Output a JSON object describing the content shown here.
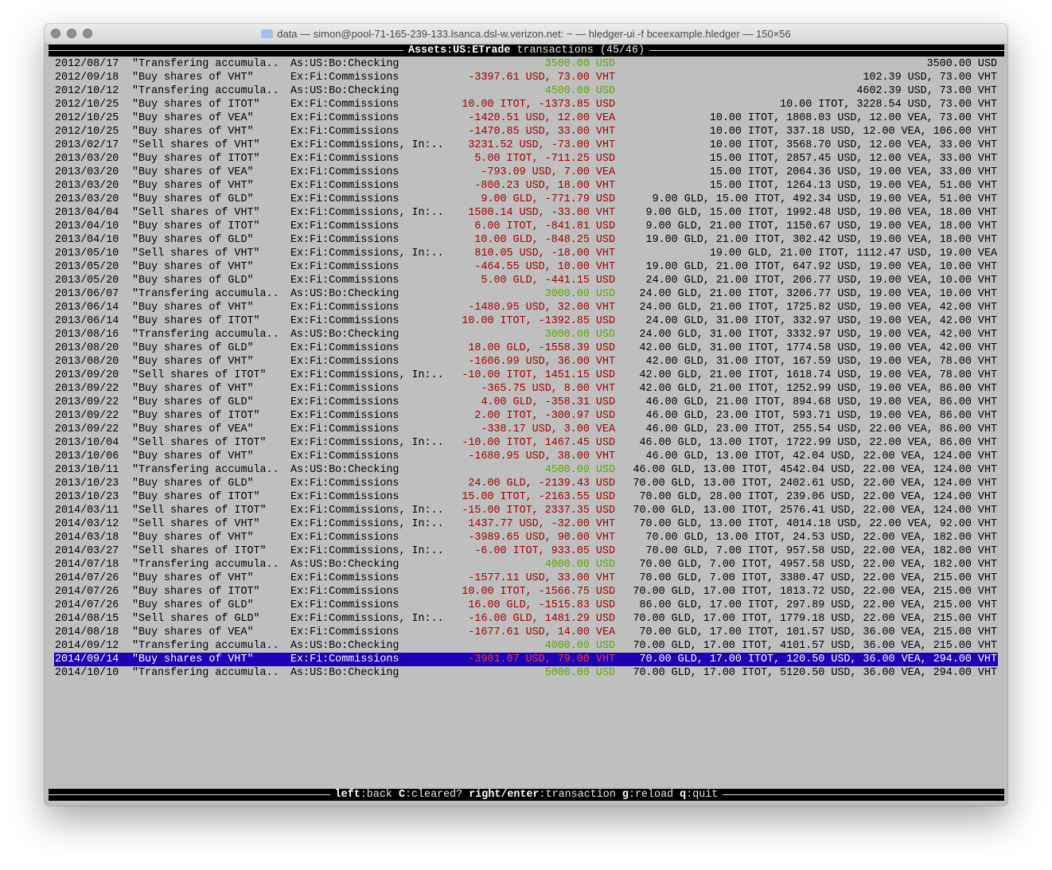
{
  "window": {
    "title": "data — simon@pool-71-165-239-133.lsanca.dsl-w.verizon.net: ~ — hledger-ui -f bceexample.hledger — 150×56"
  },
  "header": {
    "account": "Assets:US:ETrade",
    "label": "transactions",
    "position": "(45/46)"
  },
  "colors": {
    "increase": "#5aa800",
    "decrease": "#a00000",
    "selection": "#1c00b8"
  },
  "selected_index": 44,
  "rows": [
    {
      "date": "2012/08/17",
      "desc": "\"Transfering accumula..",
      "acct": "As:US:Bo:Checking",
      "change": "3500.00 USD",
      "dir": "green",
      "balance": "3500.00 USD"
    },
    {
      "date": "2012/09/18",
      "desc": "\"Buy shares of VHT\"",
      "acct": "Ex:Fi:Commissions",
      "change": "-3397.61 USD, 73.00 VHT",
      "dir": "red",
      "balance": "102.39 USD, 73.00 VHT"
    },
    {
      "date": "2012/10/12",
      "desc": "\"Transfering accumula..",
      "acct": "As:US:Bo:Checking",
      "change": "4500.00 USD",
      "dir": "green",
      "balance": "4602.39 USD, 73.00 VHT"
    },
    {
      "date": "2012/10/25",
      "desc": "\"Buy shares of ITOT\"",
      "acct": "Ex:Fi:Commissions",
      "change": "10.00 ITOT, -1373.85 USD",
      "dir": "red",
      "balance": "10.00 ITOT, 3228.54 USD, 73.00 VHT"
    },
    {
      "date": "2012/10/25",
      "desc": "\"Buy shares of VEA\"",
      "acct": "Ex:Fi:Commissions",
      "change": "-1420.51 USD, 12.00 VEA",
      "dir": "red",
      "balance": "10.00 ITOT, 1808.03 USD, 12.00 VEA, 73.00 VHT"
    },
    {
      "date": "2012/10/25",
      "desc": "\"Buy shares of VHT\"",
      "acct": "Ex:Fi:Commissions",
      "change": "-1470.85 USD, 33.00 VHT",
      "dir": "red",
      "balance": "10.00 ITOT, 337.18 USD, 12.00 VEA, 106.00 VHT"
    },
    {
      "date": "2013/02/17",
      "desc": "\"Sell shares of VHT\"",
      "acct": "Ex:Fi:Commissions, In:..",
      "change": "3231.52 USD, -73.00 VHT",
      "dir": "red",
      "balance": "10.00 ITOT, 3568.70 USD, 12.00 VEA, 33.00 VHT"
    },
    {
      "date": "2013/03/20",
      "desc": "\"Buy shares of ITOT\"",
      "acct": "Ex:Fi:Commissions",
      "change": "5.00 ITOT, -711.25 USD",
      "dir": "red",
      "balance": "15.00 ITOT, 2857.45 USD, 12.00 VEA, 33.00 VHT"
    },
    {
      "date": "2013/03/20",
      "desc": "\"Buy shares of VEA\"",
      "acct": "Ex:Fi:Commissions",
      "change": "-793.09 USD, 7.00 VEA",
      "dir": "red",
      "balance": "15.00 ITOT, 2064.36 USD, 19.00 VEA, 33.00 VHT"
    },
    {
      "date": "2013/03/20",
      "desc": "\"Buy shares of VHT\"",
      "acct": "Ex:Fi:Commissions",
      "change": "-800.23 USD, 18.00 VHT",
      "dir": "red",
      "balance": "15.00 ITOT, 1264.13 USD, 19.00 VEA, 51.00 VHT"
    },
    {
      "date": "2013/03/20",
      "desc": "\"Buy shares of GLD\"",
      "acct": "Ex:Fi:Commissions",
      "change": "9.00 GLD, -771.79 USD",
      "dir": "red",
      "balance": "9.00 GLD, 15.00 ITOT, 492.34 USD, 19.00 VEA, 51.00 VHT"
    },
    {
      "date": "2013/04/04",
      "desc": "\"Sell shares of VHT\"",
      "acct": "Ex:Fi:Commissions, In:..",
      "change": "1500.14 USD, -33.00 VHT",
      "dir": "red",
      "balance": "9.00 GLD, 15.00 ITOT, 1992.48 USD, 19.00 VEA, 18.00 VHT"
    },
    {
      "date": "2013/04/10",
      "desc": "\"Buy shares of ITOT\"",
      "acct": "Ex:Fi:Commissions",
      "change": "6.00 ITOT, -841.81 USD",
      "dir": "red",
      "balance": "9.00 GLD, 21.00 ITOT, 1150.67 USD, 19.00 VEA, 18.00 VHT"
    },
    {
      "date": "2013/04/10",
      "desc": "\"Buy shares of GLD\"",
      "acct": "Ex:Fi:Commissions",
      "change": "10.00 GLD, -848.25 USD",
      "dir": "red",
      "balance": "19.00 GLD, 21.00 ITOT, 302.42 USD, 19.00 VEA, 18.00 VHT"
    },
    {
      "date": "2013/05/10",
      "desc": "\"Sell shares of VHT\"",
      "acct": "Ex:Fi:Commissions, In:..",
      "change": "810.05 USD, -18.00 VHT",
      "dir": "red",
      "balance": "19.00 GLD, 21.00 ITOT, 1112.47 USD, 19.00 VEA"
    },
    {
      "date": "2013/05/20",
      "desc": "\"Buy shares of VHT\"",
      "acct": "Ex:Fi:Commissions",
      "change": "-464.55 USD, 10.00 VHT",
      "dir": "red",
      "balance": "19.00 GLD, 21.00 ITOT, 647.92 USD, 19.00 VEA, 10.00 VHT"
    },
    {
      "date": "2013/05/20",
      "desc": "\"Buy shares of GLD\"",
      "acct": "Ex:Fi:Commissions",
      "change": "5.00 GLD, -441.15 USD",
      "dir": "red",
      "balance": "24.00 GLD, 21.00 ITOT, 206.77 USD, 19.00 VEA, 10.00 VHT"
    },
    {
      "date": "2013/06/07",
      "desc": "\"Transfering accumula..",
      "acct": "As:US:Bo:Checking",
      "change": "3000.00 USD",
      "dir": "green",
      "balance": "24.00 GLD, 21.00 ITOT, 3206.77 USD, 19.00 VEA, 10.00 VHT"
    },
    {
      "date": "2013/06/14",
      "desc": "\"Buy shares of VHT\"",
      "acct": "Ex:Fi:Commissions",
      "change": "-1480.95 USD, 32.00 VHT",
      "dir": "red",
      "balance": "24.00 GLD, 21.00 ITOT, 1725.82 USD, 19.00 VEA, 42.00 VHT"
    },
    {
      "date": "2013/06/14",
      "desc": "\"Buy shares of ITOT\"",
      "acct": "Ex:Fi:Commissions",
      "change": "10.00 ITOT, -1392.85 USD",
      "dir": "red",
      "balance": "24.00 GLD, 31.00 ITOT, 332.97 USD, 19.00 VEA, 42.00 VHT"
    },
    {
      "date": "2013/08/16",
      "desc": "\"Transfering accumula..",
      "acct": "As:US:Bo:Checking",
      "change": "3000.00 USD",
      "dir": "green",
      "balance": "24.00 GLD, 31.00 ITOT, 3332.97 USD, 19.00 VEA, 42.00 VHT"
    },
    {
      "date": "2013/08/20",
      "desc": "\"Buy shares of GLD\"",
      "acct": "Ex:Fi:Commissions",
      "change": "18.00 GLD, -1558.39 USD",
      "dir": "red",
      "balance": "42.00 GLD, 31.00 ITOT, 1774.58 USD, 19.00 VEA, 42.00 VHT"
    },
    {
      "date": "2013/08/20",
      "desc": "\"Buy shares of VHT\"",
      "acct": "Ex:Fi:Commissions",
      "change": "-1606.99 USD, 36.00 VHT",
      "dir": "red",
      "balance": "42.00 GLD, 31.00 ITOT, 167.59 USD, 19.00 VEA, 78.00 VHT"
    },
    {
      "date": "2013/09/20",
      "desc": "\"Sell shares of ITOT\"",
      "acct": "Ex:Fi:Commissions, In:..",
      "change": "-10.00 ITOT, 1451.15 USD",
      "dir": "red",
      "balance": "42.00 GLD, 21.00 ITOT, 1618.74 USD, 19.00 VEA, 78.00 VHT"
    },
    {
      "date": "2013/09/22",
      "desc": "\"Buy shares of VHT\"",
      "acct": "Ex:Fi:Commissions",
      "change": "-365.75 USD, 8.00 VHT",
      "dir": "red",
      "balance": "42.00 GLD, 21.00 ITOT, 1252.99 USD, 19.00 VEA, 86.00 VHT"
    },
    {
      "date": "2013/09/22",
      "desc": "\"Buy shares of GLD\"",
      "acct": "Ex:Fi:Commissions",
      "change": "4.00 GLD, -358.31 USD",
      "dir": "red",
      "balance": "46.00 GLD, 21.00 ITOT, 894.68 USD, 19.00 VEA, 86.00 VHT"
    },
    {
      "date": "2013/09/22",
      "desc": "\"Buy shares of ITOT\"",
      "acct": "Ex:Fi:Commissions",
      "change": "2.00 ITOT, -300.97 USD",
      "dir": "red",
      "balance": "46.00 GLD, 23.00 ITOT, 593.71 USD, 19.00 VEA, 86.00 VHT"
    },
    {
      "date": "2013/09/22",
      "desc": "\"Buy shares of VEA\"",
      "acct": "Ex:Fi:Commissions",
      "change": "-338.17 USD, 3.00 VEA",
      "dir": "red",
      "balance": "46.00 GLD, 23.00 ITOT, 255.54 USD, 22.00 VEA, 86.00 VHT"
    },
    {
      "date": "2013/10/04",
      "desc": "\"Sell shares of ITOT\"",
      "acct": "Ex:Fi:Commissions, In:..",
      "change": "-10.00 ITOT, 1467.45 USD",
      "dir": "red",
      "balance": "46.00 GLD, 13.00 ITOT, 1722.99 USD, 22.00 VEA, 86.00 VHT"
    },
    {
      "date": "2013/10/06",
      "desc": "\"Buy shares of VHT\"",
      "acct": "Ex:Fi:Commissions",
      "change": "-1680.95 USD, 38.00 VHT",
      "dir": "red",
      "balance": "46.00 GLD, 13.00 ITOT, 42.04 USD, 22.00 VEA, 124.00 VHT"
    },
    {
      "date": "2013/10/11",
      "desc": "\"Transfering accumula..",
      "acct": "As:US:Bo:Checking",
      "change": "4500.00 USD",
      "dir": "green",
      "balance": "46.00 GLD, 13.00 ITOT, 4542.04 USD, 22.00 VEA, 124.00 VHT"
    },
    {
      "date": "2013/10/23",
      "desc": "\"Buy shares of GLD\"",
      "acct": "Ex:Fi:Commissions",
      "change": "24.00 GLD, -2139.43 USD",
      "dir": "red",
      "balance": "70.00 GLD, 13.00 ITOT, 2402.61 USD, 22.00 VEA, 124.00 VHT"
    },
    {
      "date": "2013/10/23",
      "desc": "\"Buy shares of ITOT\"",
      "acct": "Ex:Fi:Commissions",
      "change": "15.00 ITOT, -2163.55 USD",
      "dir": "red",
      "balance": "70.00 GLD, 28.00 ITOT, 239.06 USD, 22.00 VEA, 124.00 VHT"
    },
    {
      "date": "2014/03/11",
      "desc": "\"Sell shares of ITOT\"",
      "acct": "Ex:Fi:Commissions, In:..",
      "change": "-15.00 ITOT, 2337.35 USD",
      "dir": "red",
      "balance": "70.00 GLD, 13.00 ITOT, 2576.41 USD, 22.00 VEA, 124.00 VHT"
    },
    {
      "date": "2014/03/12",
      "desc": "\"Sell shares of VHT\"",
      "acct": "Ex:Fi:Commissions, In:..",
      "change": "1437.77 USD, -32.00 VHT",
      "dir": "red",
      "balance": "70.00 GLD, 13.00 ITOT, 4014.18 USD, 22.00 VEA, 92.00 VHT"
    },
    {
      "date": "2014/03/18",
      "desc": "\"Buy shares of VHT\"",
      "acct": "Ex:Fi:Commissions",
      "change": "-3989.65 USD, 90.00 VHT",
      "dir": "red",
      "balance": "70.00 GLD, 13.00 ITOT, 24.53 USD, 22.00 VEA, 182.00 VHT"
    },
    {
      "date": "2014/03/27",
      "desc": "\"Sell shares of ITOT\"",
      "acct": "Ex:Fi:Commissions, In:..",
      "change": "-6.00 ITOT, 933.05 USD",
      "dir": "red",
      "balance": "70.00 GLD, 7.00 ITOT, 957.58 USD, 22.00 VEA, 182.00 VHT"
    },
    {
      "date": "2014/07/18",
      "desc": "\"Transfering accumula..",
      "acct": "As:US:Bo:Checking",
      "change": "4000.00 USD",
      "dir": "green",
      "balance": "70.00 GLD, 7.00 ITOT, 4957.58 USD, 22.00 VEA, 182.00 VHT"
    },
    {
      "date": "2014/07/26",
      "desc": "\"Buy shares of VHT\"",
      "acct": "Ex:Fi:Commissions",
      "change": "-1577.11 USD, 33.00 VHT",
      "dir": "red",
      "balance": "70.00 GLD, 7.00 ITOT, 3380.47 USD, 22.00 VEA, 215.00 VHT"
    },
    {
      "date": "2014/07/26",
      "desc": "\"Buy shares of ITOT\"",
      "acct": "Ex:Fi:Commissions",
      "change": "10.00 ITOT, -1566.75 USD",
      "dir": "red",
      "balance": "70.00 GLD, 17.00 ITOT, 1813.72 USD, 22.00 VEA, 215.00 VHT"
    },
    {
      "date": "2014/07/26",
      "desc": "\"Buy shares of GLD\"",
      "acct": "Ex:Fi:Commissions",
      "change": "16.00 GLD, -1515.83 USD",
      "dir": "red",
      "balance": "86.00 GLD, 17.00 ITOT, 297.89 USD, 22.00 VEA, 215.00 VHT"
    },
    {
      "date": "2014/08/15",
      "desc": "\"Sell shares of GLD\"",
      "acct": "Ex:Fi:Commissions, In:..",
      "change": "-16.00 GLD, 1481.29 USD",
      "dir": "red",
      "balance": "70.00 GLD, 17.00 ITOT, 1779.18 USD, 22.00 VEA, 215.00 VHT"
    },
    {
      "date": "2014/08/18",
      "desc": "\"Buy shares of VEA\"",
      "acct": "Ex:Fi:Commissions",
      "change": "-1677.61 USD, 14.00 VEA",
      "dir": "red",
      "balance": "70.00 GLD, 17.00 ITOT, 101.57 USD, 36.00 VEA, 215.00 VHT"
    },
    {
      "date": "2014/09/12",
      "desc": "\"Transfering accumula..",
      "acct": "As:US:Bo:Checking",
      "change": "4000.00 USD",
      "dir": "green",
      "balance": "70.00 GLD, 17.00 ITOT, 4101.57 USD, 36.00 VEA, 215.00 VHT"
    },
    {
      "date": "2014/09/14",
      "desc": "\"Buy shares of VHT\"",
      "acct": "Ex:Fi:Commissions",
      "change": "-3981.07 USD, 79.00 VHT",
      "dir": "red",
      "balance": "70.00 GLD, 17.00 ITOT, 120.50 USD, 36.00 VEA, 294.00 VHT"
    },
    {
      "date": "2014/10/10",
      "desc": "\"Transfering accumula..",
      "acct": "As:US:Bo:Checking",
      "change": "5000.00 USD",
      "dir": "green",
      "balance": "70.00 GLD, 17.00 ITOT, 5120.50 USD, 36.00 VEA, 294.00 VHT"
    }
  ],
  "footer": {
    "keys": [
      {
        "key": "left",
        "action": "back"
      },
      {
        "key": "C",
        "action": "cleared?"
      },
      {
        "key": "right/enter",
        "action": "transaction"
      },
      {
        "key": "g",
        "action": "reload"
      },
      {
        "key": "q",
        "action": "quit"
      }
    ]
  }
}
